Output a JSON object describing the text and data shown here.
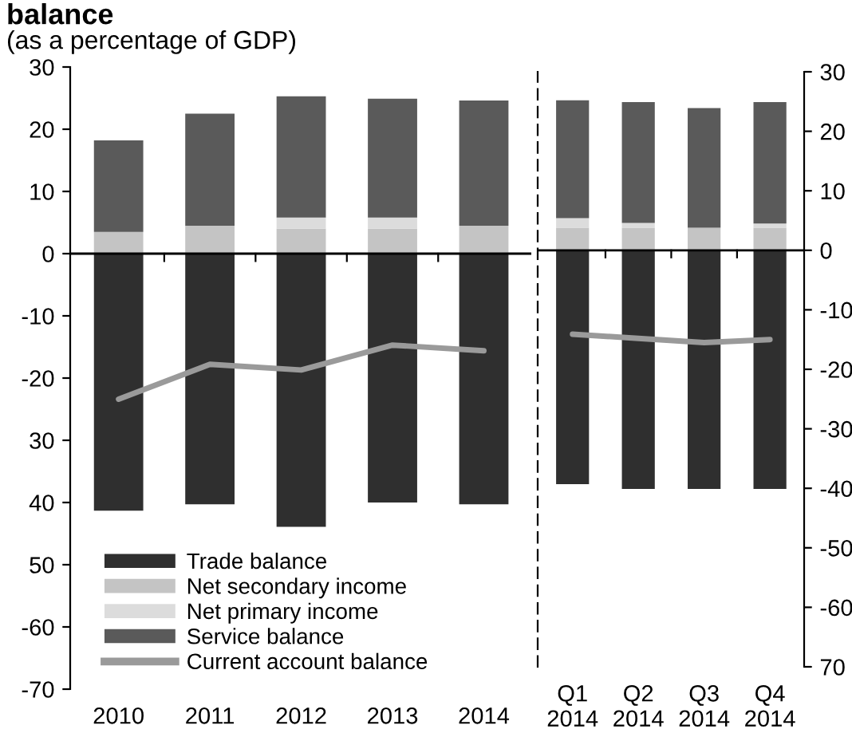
{
  "chart_data": [
    {
      "type": "bar",
      "title": "balance",
      "subtitle": "(as a percentage of GDP)",
      "stacked": true,
      "legend": "bottom",
      "categories": [
        "2010",
        "2011",
        "2012",
        "2013",
        "2014"
      ],
      "ylim": [
        -70,
        30
      ],
      "yticks": [
        30,
        20,
        10,
        0,
        -10,
        -20,
        {
          "value": -30,
          "label": "30"
        },
        {
          "value": -40,
          "label": "40"
        },
        {
          "value": -50,
          "label": "50"
        },
        -60,
        -70
      ],
      "series": [
        {
          "name": "Trade balance",
          "color": "#2f2f2f",
          "values": [
            -41.3,
            -40.3,
            -43.9,
            -40.0,
            -40.3
          ]
        },
        {
          "name": "Net secondary income",
          "color": "#c4c4c4",
          "values": [
            3.5,
            4.5,
            4.0,
            4.0,
            4.5
          ]
        },
        {
          "name": "Net primary income",
          "color": "#dcdcdc",
          "values": [
            0.0,
            0.0,
            1.8,
            1.8,
            0.0
          ]
        },
        {
          "name": "Service balance",
          "color": "#5a5a5a",
          "values": [
            14.7,
            18.0,
            19.5,
            19.1,
            20.1
          ]
        },
        {
          "name": "Current account balance",
          "type": "line",
          "color": "#9a9a9a",
          "values": [
            -23.4,
            -17.8,
            -18.7,
            -14.7,
            -15.6
          ]
        }
      ]
    },
    {
      "type": "bar",
      "stacked": true,
      "categories": [
        "Q1\n2014",
        "Q2\n2014",
        "Q3\n2014",
        "Q4\n2014"
      ],
      "y2lim": [
        -70,
        30
      ],
      "y2ticks": [
        30,
        20,
        10,
        0,
        -10,
        -20,
        -30,
        -40,
        -50,
        -60,
        {
          "value": -70,
          "label": "70"
        }
      ],
      "series": [
        {
          "color": "#2f2f2f",
          "axis": "y2",
          "values": [
            -39.3,
            -40.1,
            -40.1,
            -40.1
          ]
        },
        {
          "color": "#c4c4c4",
          "axis": "y2",
          "values": [
            3.8,
            3.8,
            3.8,
            3.8
          ]
        },
        {
          "color": "#dcdcdc",
          "axis": "y2",
          "values": [
            1.6,
            0.8,
            null,
            0.7
          ]
        },
        {
          "color": "#5a5a5a",
          "axis": "y2",
          "values": [
            19.8,
            20.3,
            20.1,
            20.4
          ]
        },
        {
          "type": "line",
          "color": "#9a9a9a",
          "axis": "y2",
          "values": [
            -14.1,
            -14.8,
            -15.5,
            -15.0
          ]
        }
      ]
    }
  ]
}
